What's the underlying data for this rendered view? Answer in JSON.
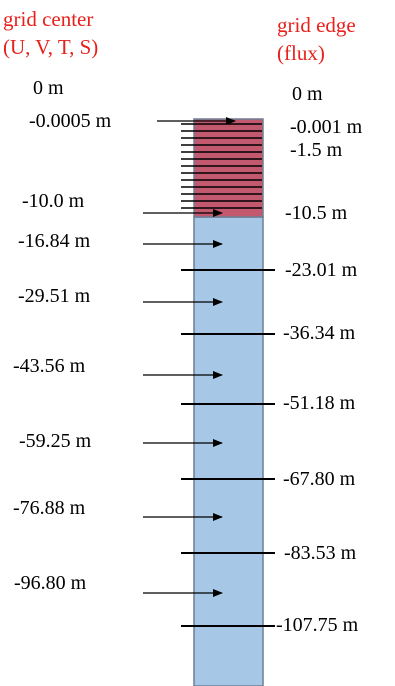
{
  "headers": {
    "center_title": "grid center",
    "center_vars": "(U, V, T, S)",
    "edge_title": "grid edge",
    "edge_vars": "(flux)"
  },
  "colors": {
    "upper_fill": "#c2596f",
    "lower_fill": "#a7c7e7",
    "column_border": "#6d7f95",
    "header_text": "#e8201c"
  },
  "center_labels": [
    "0 m",
    "-0.0005 m",
    "-10.0 m",
    "-16.84 m",
    "-29.51 m",
    "-43.56 m",
    "-59.25 m",
    "-76.88 m",
    "-96.80 m"
  ],
  "edge_labels": [
    "0 m",
    "-0.001 m",
    "-1.5 m",
    "-10.5 m",
    "-23.01 m",
    "-36.34 m",
    "-51.18 m",
    "-67.80 m",
    "-83.53 m",
    "-107.75 m"
  ]
}
